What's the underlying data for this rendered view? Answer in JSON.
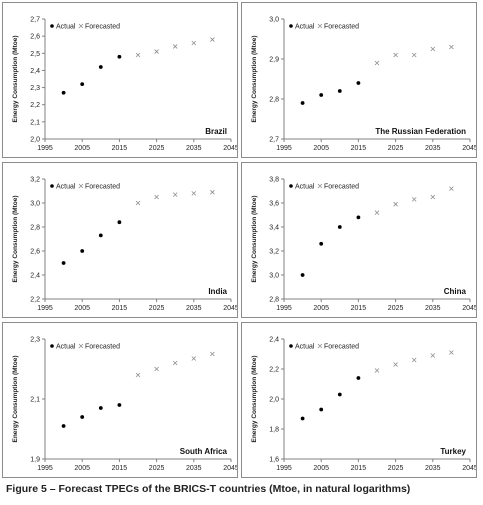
{
  "caption": "Figure 5 – Forecast TPECs of the BRICS-T countries (Mtoe, in natural logarithms)",
  "legend": {
    "actual": "Actual",
    "forecasted": "Forecasted"
  },
  "colors": {
    "actual": "#000000",
    "forecasted": "#8c8c8c",
    "axis": "#808080"
  },
  "chart_data": [
    {
      "type": "scatter",
      "title": "Brazil",
      "ylabel": "Energy Consumption (Mtoe)",
      "xlim": [
        1995,
        2045
      ],
      "xticks": [
        "1995",
        "2005",
        "2015",
        "2025",
        "2035",
        "2045"
      ],
      "ylim": [
        2.0,
        2.7
      ],
      "yticks": [
        "2,0",
        "2,1",
        "2,2",
        "2,3",
        "2,4",
        "2,5",
        "2,6",
        "2,7"
      ],
      "series": [
        {
          "name": "Actual",
          "marker": "dot",
          "x": [
            2000,
            2005,
            2010,
            2015
          ],
          "y": [
            2.27,
            2.32,
            2.42,
            2.48
          ]
        },
        {
          "name": "Forecasted",
          "marker": "x",
          "x": [
            2020,
            2025,
            2030,
            2035,
            2040
          ],
          "y": [
            2.49,
            2.51,
            2.54,
            2.56,
            2.58
          ]
        }
      ]
    },
    {
      "type": "scatter",
      "title": "The Russian Federation",
      "ylabel": "Energy Consumption (Mtoe)",
      "xlim": [
        1995,
        2045
      ],
      "xticks": [
        "1995",
        "2005",
        "2015",
        "2025",
        "2035",
        "2045"
      ],
      "ylim": [
        2.7,
        3.0
      ],
      "yticks": [
        "2,7",
        "2,8",
        "2,9",
        "3,0"
      ],
      "series": [
        {
          "name": "Actual",
          "marker": "dot",
          "x": [
            2000,
            2005,
            2010,
            2015
          ],
          "y": [
            2.79,
            2.81,
            2.82,
            2.84
          ]
        },
        {
          "name": "Forecasted",
          "marker": "x",
          "x": [
            2020,
            2025,
            2030,
            2035,
            2040
          ],
          "y": [
            2.89,
            2.91,
            2.91,
            2.925,
            2.93
          ]
        }
      ]
    },
    {
      "type": "scatter",
      "title": "India",
      "ylabel": "Energy Consumption (Mtoe)",
      "xlim": [
        1995,
        2045
      ],
      "xticks": [
        "1995",
        "2005",
        "2015",
        "2025",
        "2035",
        "2045"
      ],
      "ylim": [
        2.2,
        3.2
      ],
      "yticks": [
        "2,2",
        "2,4",
        "2,6",
        "2,8",
        "3,0",
        "3,2"
      ],
      "series": [
        {
          "name": "Actual",
          "marker": "dot",
          "x": [
            2000,
            2005,
            2010,
            2015
          ],
          "y": [
            2.5,
            2.6,
            2.73,
            2.84
          ]
        },
        {
          "name": "Forecasted",
          "marker": "x",
          "x": [
            2020,
            2025,
            2030,
            2035,
            2040
          ],
          "y": [
            3.0,
            3.05,
            3.07,
            3.08,
            3.09
          ]
        }
      ]
    },
    {
      "type": "scatter",
      "title": "China",
      "ylabel": "Energy Consumption (Mtoe)",
      "xlim": [
        1995,
        2045
      ],
      "xticks": [
        "1995",
        "2005",
        "2015",
        "2025",
        "2035",
        "2045"
      ],
      "ylim": [
        2.8,
        3.8
      ],
      "yticks": [
        "2,8",
        "3,0",
        "3,2",
        "3,4",
        "3,6",
        "3,8"
      ],
      "series": [
        {
          "name": "Actual",
          "marker": "dot",
          "x": [
            2000,
            2005,
            2010,
            2015
          ],
          "y": [
            3.0,
            3.26,
            3.4,
            3.48
          ]
        },
        {
          "name": "Forecasted",
          "marker": "x",
          "x": [
            2020,
            2025,
            2030,
            2035,
            2040
          ],
          "y": [
            3.52,
            3.59,
            3.63,
            3.65,
            3.72
          ]
        }
      ]
    },
    {
      "type": "scatter",
      "title": "South Africa",
      "ylabel": "Energy Consumption (Mtoe)",
      "xlim": [
        1995,
        2045
      ],
      "xticks": [
        "1995",
        "2005",
        "2015",
        "2025",
        "2035",
        "2045"
      ],
      "ylim": [
        1.9,
        2.3
      ],
      "yticks": [
        "1,9",
        "2,1",
        "2,3"
      ],
      "series": [
        {
          "name": "Actual",
          "marker": "dot",
          "x": [
            2000,
            2005,
            2010,
            2015
          ],
          "y": [
            2.01,
            2.04,
            2.07,
            2.08
          ]
        },
        {
          "name": "Forecasted",
          "marker": "x",
          "x": [
            2020,
            2025,
            2030,
            2035,
            2040
          ],
          "y": [
            2.18,
            2.2,
            2.22,
            2.235,
            2.25
          ]
        }
      ]
    },
    {
      "type": "scatter",
      "title": "Turkey",
      "ylabel": "Energy Consumption (Mtoe)",
      "xlim": [
        1995,
        2045
      ],
      "xticks": [
        "1995",
        "2005",
        "2015",
        "2025",
        "2035",
        "2045"
      ],
      "ylim": [
        1.6,
        2.4
      ],
      "yticks": [
        "1,6",
        "1,8",
        "2,0",
        "2,2",
        "2,4"
      ],
      "series": [
        {
          "name": "Actual",
          "marker": "dot",
          "x": [
            2000,
            2005,
            2010,
            2015
          ],
          "y": [
            1.87,
            1.93,
            2.03,
            2.14
          ]
        },
        {
          "name": "Forecasted",
          "marker": "x",
          "x": [
            2020,
            2025,
            2030,
            2035,
            2040
          ],
          "y": [
            2.19,
            2.23,
            2.26,
            2.29,
            2.31
          ]
        }
      ]
    }
  ]
}
